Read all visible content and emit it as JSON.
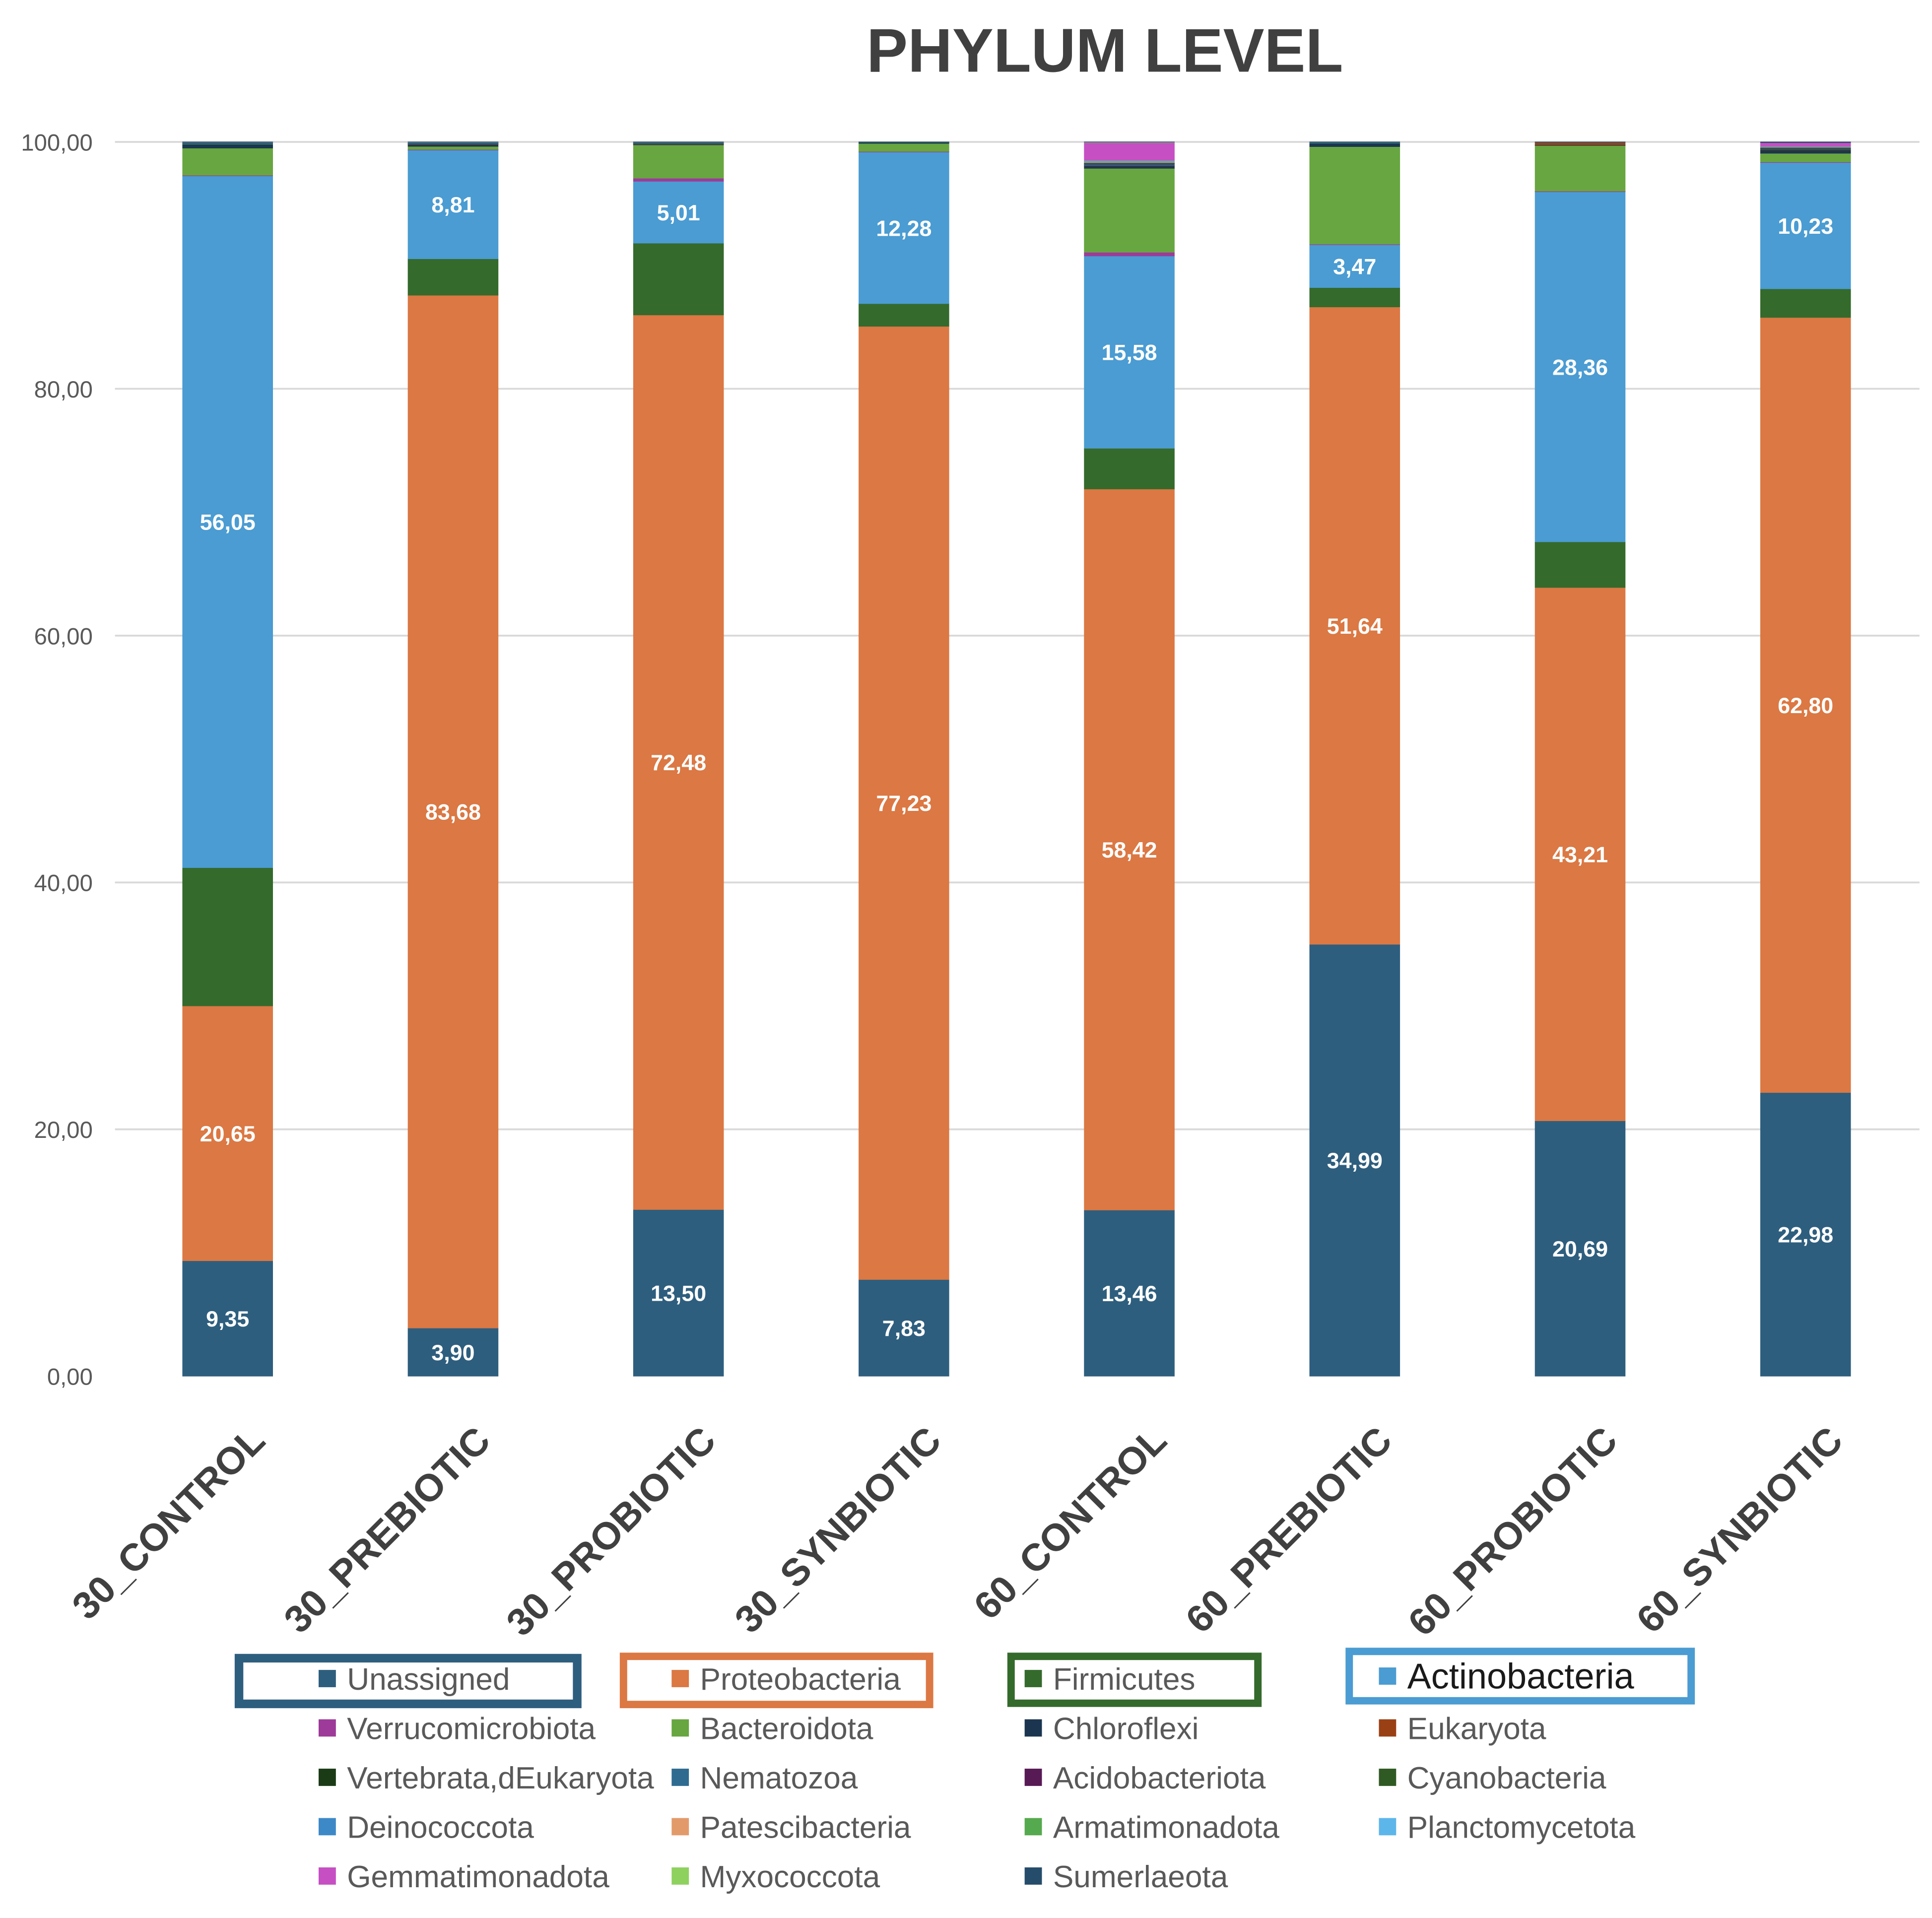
{
  "chart_data": {
    "type": "stacked-bar",
    "title": "PHYLUM LEVEL",
    "xlabel": "",
    "ylabel": "",
    "ylim": [
      0,
      100
    ],
    "yticks": [
      0,
      20,
      40,
      60,
      80,
      100
    ],
    "grid": true,
    "legend_position": "bottom",
    "categories": [
      "30_CONTROL",
      "30_PREBIOTIC",
      "30_PROBIOTIC",
      "30_SYNBIOTIC",
      "60_CONTROL",
      "60_PREBIOTIC",
      "60_PROBIOTIC",
      "60_SYNBIOTIC"
    ],
    "series": [
      {
        "name": "Unassigned",
        "color": "#2E5E7E",
        "data_labels": true,
        "values": [
          9.35,
          3.9,
          13.5,
          7.83,
          13.46,
          34.99,
          20.69,
          22.98
        ]
      },
      {
        "name": "Proteobacteria",
        "color": "#DB7843",
        "data_labels": true,
        "values": [
          20.65,
          83.68,
          72.48,
          77.23,
          58.42,
          51.64,
          43.21,
          62.8
        ]
      },
      {
        "name": "Firmicutes",
        "color": "#346A2C",
        "data_labels": false,
        "values": [
          11.2,
          2.95,
          5.82,
          1.84,
          3.3,
          1.57,
          3.7,
          2.32
        ]
      },
      {
        "name": "Actinobacteria",
        "color": "#4A9CD2",
        "data_labels": true,
        "values": [
          56.05,
          8.81,
          5.01,
          12.28,
          15.58,
          3.47,
          28.36,
          10.23
        ]
      },
      {
        "name": "Verrucomicrobiota",
        "color": "#9E3A99",
        "data_labels": false,
        "values": [
          0.05,
          0.05,
          0.25,
          0.05,
          0.3,
          0.05,
          0.05,
          0.05
        ]
      },
      {
        "name": "Bacteroidota",
        "color": "#67A640",
        "data_labels": false,
        "values": [
          2.2,
          0.25,
          2.7,
          0.65,
          6.8,
          7.9,
          3.7,
          0.7
        ]
      },
      {
        "name": "Chloroflexi",
        "color": "#1B3550",
        "data_labels": false,
        "values": [
          0.25,
          0.15,
          0.05,
          0.05,
          0.2,
          0.25,
          0.05,
          0.25
        ]
      },
      {
        "name": "Eukaryota",
        "color": "#9A4015",
        "data_labels": false,
        "values": [
          0,
          0.02,
          0.02,
          0,
          0.02,
          0,
          0.2,
          0.02
        ]
      },
      {
        "name": "Vertebrata,dEukaryota",
        "color": "#1B3B17",
        "data_labels": false,
        "values": [
          0.05,
          0.02,
          0.02,
          0.02,
          0.02,
          0.02,
          0,
          0.05
        ]
      },
      {
        "name": "Nematozoa",
        "color": "#2F6B90",
        "data_labels": false,
        "values": [
          0.1,
          0.05,
          0.05,
          0.02,
          0.1,
          0.02,
          0.02,
          0.05
        ]
      },
      {
        "name": "Acidobacteriota",
        "color": "#571A55",
        "data_labels": false,
        "values": [
          0.02,
          0.02,
          0.02,
          0,
          0.05,
          0,
          0,
          0.02
        ]
      },
      {
        "name": "Cyanobacteria",
        "color": "#2F5A24",
        "data_labels": false,
        "values": [
          0.03,
          0.03,
          0.03,
          0,
          0.05,
          0.02,
          0,
          0.08
        ]
      },
      {
        "name": "Deinococcota",
        "color": "#3D89C7",
        "data_labels": false,
        "values": [
          0,
          0.02,
          0,
          0,
          0.05,
          0,
          0,
          0.02
        ]
      },
      {
        "name": "Patescibacteria",
        "color": "#E39A6B",
        "data_labels": false,
        "values": [
          0,
          0,
          0,
          0,
          0.05,
          0,
          0,
          0.02
        ]
      },
      {
        "name": "Armatimonadota",
        "color": "#55A94E",
        "data_labels": false,
        "values": [
          0,
          0,
          0,
          0,
          0.05,
          0,
          0,
          0.02
        ]
      },
      {
        "name": "Planctomycetota",
        "color": "#5DB6EA",
        "data_labels": false,
        "values": [
          0.02,
          0.02,
          0.02,
          0,
          0.05,
          0.02,
          0,
          0.03
        ]
      },
      {
        "name": "Gemmatimonadota",
        "color": "#C64FC4",
        "data_labels": false,
        "values": [
          0,
          0,
          0,
          0,
          1.45,
          0,
          0,
          0.3
        ]
      },
      {
        "name": "Myxococcota",
        "color": "#8ED15F",
        "data_labels": false,
        "values": [
          0,
          0,
          0,
          0,
          0.03,
          0,
          0,
          0
        ]
      },
      {
        "name": "Sumerlaeota",
        "color": "#254D6B",
        "data_labels": false,
        "values": [
          0.03,
          0.03,
          0.03,
          0.03,
          0.02,
          0.05,
          0.02,
          0.06
        ]
      }
    ]
  }
}
